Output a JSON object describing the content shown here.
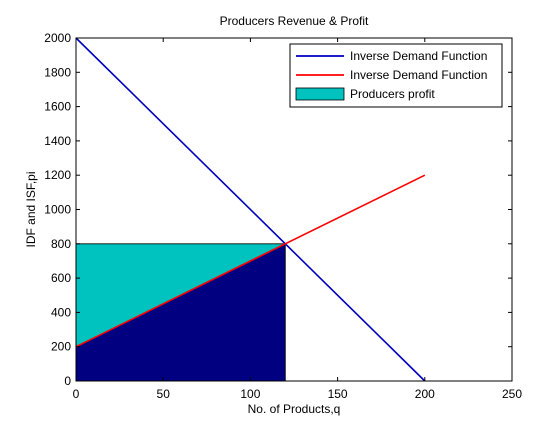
{
  "chart_data": {
    "type": "line",
    "title": "Producers Revenue & Profit",
    "xlabel": "No. of Products,q",
    "ylabel": "IDF and ISF,pi",
    "xlim": [
      0,
      250
    ],
    "ylim": [
      0,
      2000
    ],
    "xticks": [
      0,
      50,
      100,
      150,
      200,
      250
    ],
    "yticks": [
      0,
      200,
      400,
      600,
      800,
      1000,
      1200,
      1400,
      1600,
      1800,
      2000
    ],
    "grid": false,
    "legend_position": "top-right",
    "series": [
      {
        "name": "Inverse Demand Function",
        "kind": "line",
        "color": "#0000bf",
        "x": [
          0,
          200
        ],
        "y": [
          2000,
          0
        ]
      },
      {
        "name": "Inverse Demand Function",
        "kind": "line",
        "color": "#ff0000",
        "x": [
          0,
          200
        ],
        "y": [
          200,
          1200
        ]
      },
      {
        "name": "Producers profit",
        "kind": "area",
        "color": "#00c2bf",
        "x": [
          0,
          0,
          120,
          120
        ],
        "y": [
          200,
          800,
          800,
          800
        ]
      }
    ],
    "unlabeled_regions": [
      {
        "kind": "area",
        "color": "#000080",
        "x": [
          0,
          120,
          120,
          0
        ],
        "y": [
          0,
          0,
          800,
          200
        ]
      }
    ]
  }
}
